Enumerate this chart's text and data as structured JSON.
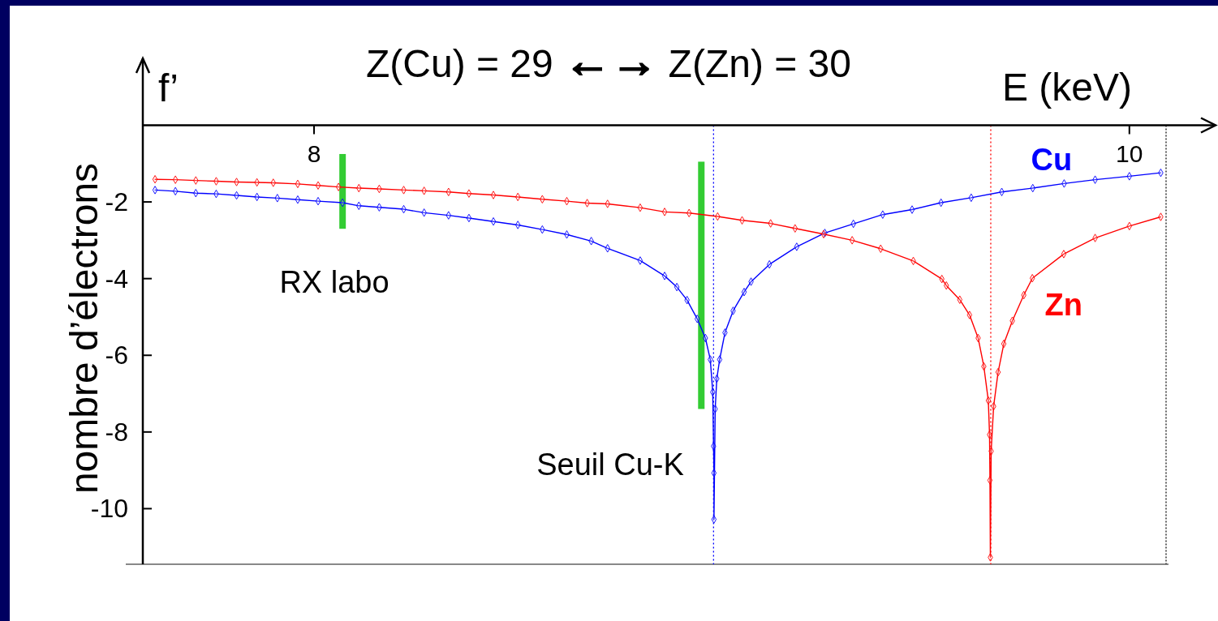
{
  "chart_data": {
    "type": "line",
    "title": "Z(Cu) = 29 ←→ Z(Zn) = 30",
    "xlabel": "E (keV)",
    "ylabel": "nombre d’électrons",
    "annotations": [
      "f’",
      "RX labo",
      "Seuil Cu-K"
    ],
    "xlim": [
      7.58,
      10.09
    ],
    "xticks": [
      8,
      10
    ],
    "ylim": [
      -11.45,
      0
    ],
    "yticks": [
      -10,
      -8,
      -6,
      -4,
      -2
    ],
    "marker": "diamond",
    "series": [
      {
        "name": "Cu",
        "color": "#0000ff",
        "x": [
          7.61,
          7.66,
          7.71,
          7.76,
          7.81,
          7.86,
          7.91,
          7.96,
          8.01,
          8.07,
          8.11,
          8.16,
          8.22,
          8.27,
          8.33,
          8.38,
          8.44,
          8.5,
          8.56,
          8.62,
          8.68,
          8.72,
          8.8,
          8.86,
          8.89,
          8.915,
          8.94,
          8.96,
          8.972,
          8.978,
          8.98,
          8.981,
          8.981,
          8.984,
          8.988,
          8.995,
          9.008,
          9.028,
          9.055,
          9.072,
          9.117,
          9.184,
          9.253,
          9.323,
          9.395,
          9.467,
          9.538,
          9.612,
          9.687,
          9.763,
          9.84,
          9.916,
          10.0,
          10.077
        ],
        "values": [
          -1.69,
          -1.72,
          -1.77,
          -1.79,
          -1.83,
          -1.87,
          -1.9,
          -1.94,
          -1.98,
          -2.02,
          -2.1,
          -2.14,
          -2.19,
          -2.28,
          -2.35,
          -2.42,
          -2.51,
          -2.6,
          -2.72,
          -2.85,
          -3.02,
          -3.21,
          -3.53,
          -3.93,
          -4.22,
          -4.56,
          -5.05,
          -5.55,
          -6.11,
          -6.96,
          -8.37,
          -9.07,
          -10.28,
          -7.4,
          -6.61,
          -6.11,
          -5.41,
          -4.84,
          -4.35,
          -4.08,
          -3.63,
          -3.17,
          -2.81,
          -2.57,
          -2.33,
          -2.2,
          -2.02,
          -1.89,
          -1.74,
          -1.64,
          -1.52,
          -1.42,
          -1.33,
          -1.24
        ]
      },
      {
        "name": "Zn",
        "color": "#ff0000",
        "x": [
          7.61,
          7.66,
          7.71,
          7.76,
          7.81,
          7.86,
          7.9,
          7.96,
          8.01,
          8.06,
          8.11,
          8.16,
          8.22,
          8.27,
          8.33,
          8.38,
          8.44,
          8.5,
          8.56,
          8.62,
          8.67,
          8.72,
          8.8,
          8.86,
          8.92,
          8.99,
          9.05,
          9.12,
          9.18,
          9.25,
          9.32,
          9.39,
          9.47,
          9.54,
          9.551,
          9.584,
          9.608,
          9.629,
          9.643,
          9.654,
          9.657,
          9.658,
          9.659,
          9.661,
          9.667,
          9.678,
          9.692,
          9.713,
          9.741,
          9.762,
          9.839,
          9.916,
          10.0,
          10.077
        ],
        "values": [
          -1.41,
          -1.42,
          -1.44,
          -1.46,
          -1.48,
          -1.49,
          -1.5,
          -1.53,
          -1.57,
          -1.61,
          -1.64,
          -1.66,
          -1.69,
          -1.71,
          -1.74,
          -1.78,
          -1.82,
          -1.87,
          -1.93,
          -1.98,
          -2.03,
          -2.05,
          -2.15,
          -2.26,
          -2.29,
          -2.38,
          -2.48,
          -2.56,
          -2.69,
          -2.84,
          -3.0,
          -3.22,
          -3.54,
          -4.01,
          -4.18,
          -4.55,
          -4.95,
          -5.55,
          -6.29,
          -7.18,
          -8.07,
          -9.26,
          -11.27,
          -8.5,
          -7.33,
          -6.44,
          -5.7,
          -5.1,
          -4.43,
          -3.99,
          -3.36,
          -2.94,
          -2.63,
          -2.39
        ]
      },
      {
        "type": "bar",
        "color": "#33cc33",
        "x": [
          8.07,
          8.95
        ],
        "base": [
          -2.7,
          -7.4
        ],
        "values": [
          1.95,
          6.45
        ]
      }
    ],
    "ref_lines": [
      {
        "axis": "x",
        "value": 8.98,
        "color": "#0000ff",
        "line_style": "dotted"
      },
      {
        "axis": "x",
        "value": 9.66,
        "color": "#ff0000",
        "line_style": "dotted"
      }
    ]
  }
}
